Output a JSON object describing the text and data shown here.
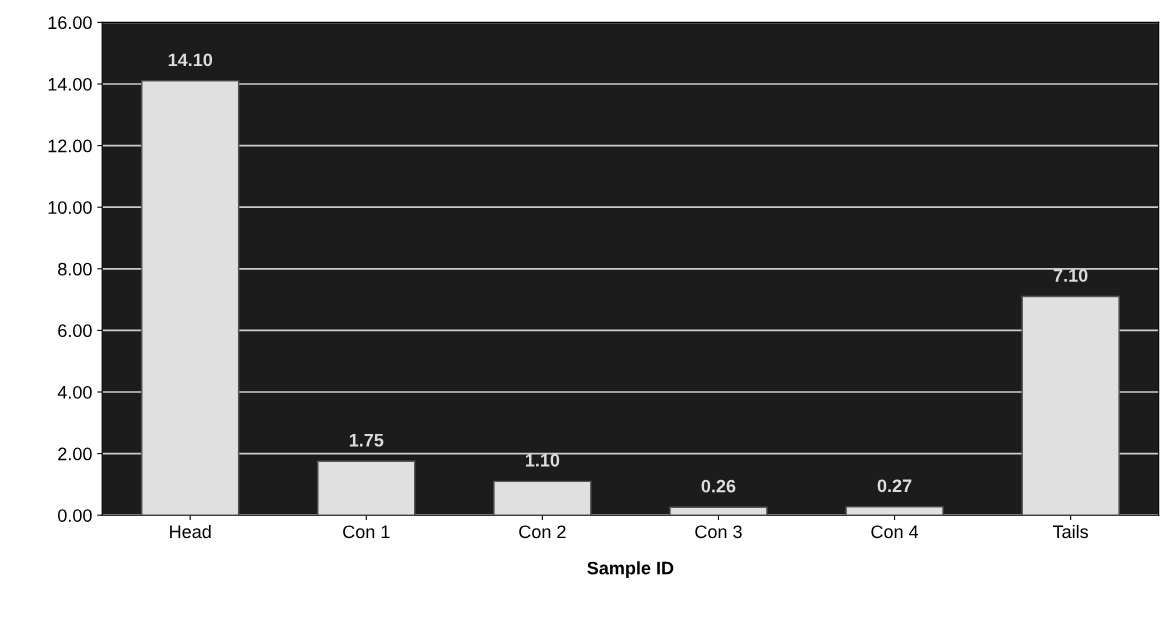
{
  "chart_data": {
    "type": "bar",
    "xlabel": "Sample ID",
    "categories": [
      "Head",
      "Con 1",
      "Con 2",
      "Con 3",
      "Con 4",
      "Tails"
    ],
    "values": [
      14.1,
      1.75,
      1.1,
      0.26,
      0.27,
      7.1
    ],
    "value_labels": [
      "14.10",
      "1.75",
      "1.10",
      "0.26",
      "0.27",
      "7.10"
    ],
    "color": "#e0e0e0",
    "ylim": [
      0,
      16
    ],
    "yticks": [
      {
        "value": 0,
        "label": "0.00"
      },
      {
        "value": 2,
        "label": "2.00"
      },
      {
        "value": 4,
        "label": "4.00"
      },
      {
        "value": 6,
        "label": "6.00"
      },
      {
        "value": 8,
        "label": "8.00"
      },
      {
        "value": 10,
        "label": "10.00"
      },
      {
        "value": 12,
        "label": "12.00"
      },
      {
        "value": 14,
        "label": "14.00"
      },
      {
        "value": 16,
        "label": "16.00"
      }
    ],
    "grid": "y",
    "legend": false
  }
}
